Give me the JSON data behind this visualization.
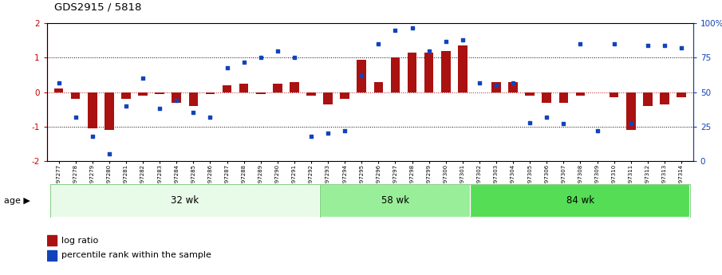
{
  "title": "GDS2915 / 5818",
  "samples": [
    "GSM97277",
    "GSM97278",
    "GSM97279",
    "GSM97280",
    "GSM97281",
    "GSM97282",
    "GSM97283",
    "GSM97284",
    "GSM97285",
    "GSM97286",
    "GSM97287",
    "GSM97288",
    "GSM97289",
    "GSM97290",
    "GSM97291",
    "GSM97292",
    "GSM97293",
    "GSM97294",
    "GSM97295",
    "GSM97296",
    "GSM97297",
    "GSM97298",
    "GSM97299",
    "GSM97300",
    "GSM97301",
    "GSM97302",
    "GSM97303",
    "GSM97304",
    "GSM97305",
    "GSM97306",
    "GSM97307",
    "GSM97308",
    "GSM97309",
    "GSM97310",
    "GSM97311",
    "GSM97312",
    "GSM97313",
    "GSM97314"
  ],
  "log_ratio": [
    0.1,
    -0.2,
    -1.05,
    -1.1,
    -0.2,
    -0.1,
    -0.05,
    -0.3,
    -0.4,
    -0.05,
    0.2,
    0.25,
    -0.05,
    0.25,
    0.3,
    -0.1,
    -0.35,
    -0.2,
    0.95,
    0.3,
    1.0,
    1.15,
    1.15,
    1.2,
    1.35,
    0.0,
    0.3,
    0.3,
    -0.1,
    -0.3,
    -0.3,
    -0.1,
    0.0,
    -0.15,
    -1.1,
    -0.4,
    -0.35,
    -0.15
  ],
  "percentile": [
    57,
    32,
    18,
    5,
    40,
    60,
    38,
    44,
    35,
    32,
    68,
    72,
    75,
    80,
    75,
    18,
    20,
    22,
    62,
    85,
    95,
    97,
    80,
    87,
    88,
    57,
    55,
    57,
    28,
    32,
    27,
    85,
    22,
    85,
    27,
    84,
    84,
    82
  ],
  "groups": [
    {
      "label": "32 wk",
      "start": 0,
      "end": 16
    },
    {
      "label": "58 wk",
      "start": 16,
      "end": 25
    },
    {
      "label": "84 wk",
      "start": 25,
      "end": 38
    }
  ],
  "bar_color": "#aa1111",
  "scatter_color": "#1144bb",
  "ylim_left": [
    -2,
    2
  ],
  "ylim_right": [
    0,
    100
  ],
  "group_colors": [
    "#e0fae0",
    "#99ee99",
    "#55dd55"
  ],
  "legend_log_ratio": "log ratio",
  "legend_percentile": "percentile rank within the sample",
  "age_label": "age"
}
